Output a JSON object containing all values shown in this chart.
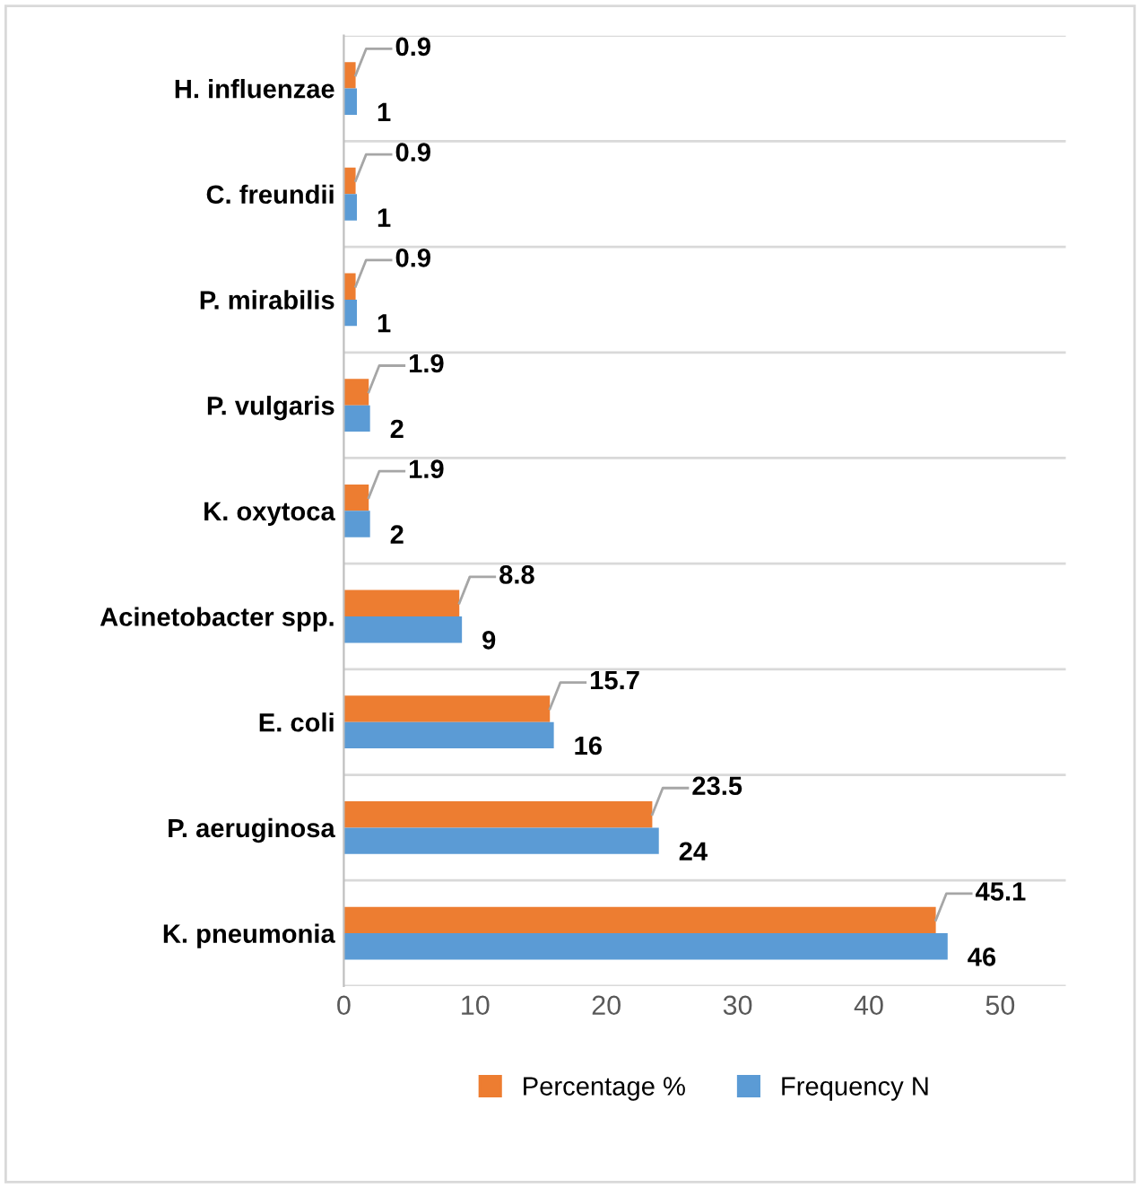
{
  "chart_data": {
    "type": "bar",
    "orientation": "horizontal",
    "categories": [
      "H. influenzae",
      "C. freundii",
      "P. mirabilis",
      "P. vulgaris",
      "K. oxytoca",
      "Acinetobacter spp.",
      "E. coli",
      "P. aeruginosa",
      "K. pneumonia"
    ],
    "series": [
      {
        "name": "Percentage %",
        "color": "#ed7d31",
        "values": [
          0.9,
          0.9,
          0.9,
          1.9,
          1.9,
          8.8,
          15.7,
          23.5,
          45.1
        ]
      },
      {
        "name": "Frequency N",
        "color": "#5b9bd5",
        "values": [
          1,
          1,
          1,
          2,
          2,
          9,
          16,
          24,
          46
        ]
      }
    ],
    "xlim": [
      0,
      55
    ],
    "xticks": [
      0,
      10,
      20,
      30,
      40,
      50
    ],
    "grid": "y",
    "legend": "bottom",
    "data_labels": true
  }
}
